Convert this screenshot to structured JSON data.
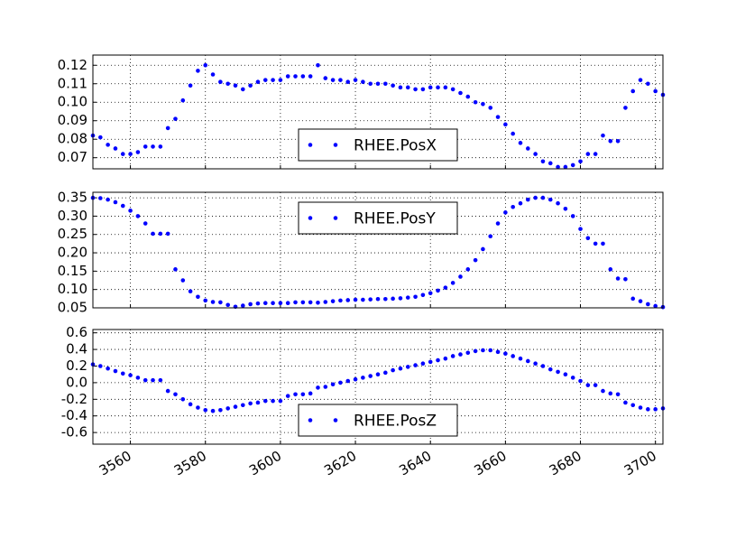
{
  "chart_data": [
    {
      "type": "scatter",
      "x": [
        3550,
        3552,
        3554,
        3556,
        3558,
        3560,
        3562,
        3564,
        3566,
        3568,
        3570,
        3572,
        3574,
        3576,
        3578,
        3580,
        3582,
        3584,
        3586,
        3588,
        3590,
        3592,
        3594,
        3596,
        3598,
        3600,
        3602,
        3604,
        3606,
        3608,
        3610,
        3612,
        3614,
        3616,
        3618,
        3620,
        3622,
        3624,
        3626,
        3628,
        3630,
        3632,
        3634,
        3636,
        3638,
        3640,
        3642,
        3644,
        3646,
        3648,
        3650,
        3652,
        3654,
        3656,
        3658,
        3660,
        3662,
        3664,
        3666,
        3668,
        3670,
        3672,
        3674,
        3676,
        3678,
        3680,
        3682,
        3684,
        3686,
        3688,
        3690,
        3692,
        3694,
        3696,
        3698,
        3700,
        3702
      ],
      "series": [
        {
          "name": "RHEE.PosX",
          "color": "#0000ff",
          "values": [
            0.082,
            0.081,
            0.077,
            0.075,
            0.072,
            0.072,
            0.073,
            0.076,
            0.076,
            0.076,
            0.086,
            0.091,
            0.101,
            0.109,
            0.117,
            0.12,
            0.115,
            0.111,
            0.11,
            0.109,
            0.107,
            0.109,
            0.111,
            0.112,
            0.112,
            0.112,
            0.114,
            0.114,
            0.114,
            0.114,
            0.12,
            0.113,
            0.112,
            0.112,
            0.111,
            0.112,
            0.111,
            0.11,
            0.11,
            0.11,
            0.109,
            0.108,
            0.108,
            0.107,
            0.107,
            0.108,
            0.108,
            0.108,
            0.107,
            0.105,
            0.103,
            0.1,
            0.099,
            0.097,
            0.092,
            0.088,
            0.083,
            0.078,
            0.075,
            0.072,
            0.068,
            0.067,
            0.065,
            0.065,
            0.066,
            0.068,
            0.072,
            0.072,
            0.082,
            0.079,
            0.079,
            0.097,
            0.106,
            0.112,
            0.11,
            0.106,
            0.104
          ]
        }
      ],
      "xlim": [
        3550,
        3702
      ],
      "ylim": [
        0.064,
        0.1255
      ],
      "yticks": [
        0.07,
        0.08,
        0.09,
        {
          "value": 0.1,
          "label": "0.10"
        },
        0.11,
        0.12
      ],
      "grid": true,
      "legend": "lower center"
    },
    {
      "type": "scatter",
      "x": [
        3550,
        3552,
        3554,
        3556,
        3558,
        3560,
        3562,
        3564,
        3566,
        3568,
        3570,
        3572,
        3574,
        3576,
        3578,
        3580,
        3582,
        3584,
        3586,
        3588,
        3590,
        3592,
        3594,
        3596,
        3598,
        3600,
        3602,
        3604,
        3606,
        3608,
        3610,
        3612,
        3614,
        3616,
        3618,
        3620,
        3622,
        3624,
        3626,
        3628,
        3630,
        3632,
        3634,
        3636,
        3638,
        3640,
        3642,
        3644,
        3646,
        3648,
        3650,
        3652,
        3654,
        3656,
        3658,
        3660,
        3662,
        3664,
        3666,
        3668,
        3670,
        3672,
        3674,
        3676,
        3678,
        3680,
        3682,
        3684,
        3686,
        3688,
        3690,
        3692,
        3694,
        3696,
        3698,
        3700,
        3702
      ],
      "series": [
        {
          "name": "RHEE.PosY",
          "color": "#0000ff",
          "values": [
            0.35,
            0.349,
            0.345,
            0.338,
            0.328,
            0.315,
            0.3,
            0.28,
            0.252,
            0.252,
            0.252,
            0.155,
            0.125,
            0.095,
            0.08,
            0.07,
            0.066,
            0.065,
            0.058,
            0.053,
            0.056,
            0.06,
            0.062,
            0.063,
            0.063,
            0.063,
            0.063,
            0.065,
            0.065,
            0.065,
            0.064,
            0.066,
            0.068,
            0.07,
            0.071,
            0.072,
            0.072,
            0.073,
            0.074,
            0.074,
            0.075,
            0.076,
            0.078,
            0.08,
            0.085,
            0.09,
            0.097,
            0.105,
            0.118,
            0.135,
            0.155,
            0.18,
            0.21,
            0.245,
            0.28,
            0.31,
            0.325,
            0.335,
            0.345,
            0.35,
            0.35,
            0.345,
            0.335,
            0.32,
            0.3,
            0.265,
            0.24,
            0.225,
            0.225,
            0.155,
            0.13,
            0.128,
            0.075,
            0.068,
            0.06,
            0.055,
            0.052
          ]
        }
      ],
      "xlim": [
        3550,
        3702
      ],
      "ylim": [
        0.05,
        0.365
      ],
      "yticks": [
        0.05,
        {
          "value": 0.1,
          "label": "0.10"
        },
        0.15,
        {
          "value": 0.2,
          "label": "0.20"
        },
        0.25,
        {
          "value": 0.3,
          "label": "0.30"
        },
        0.35
      ],
      "grid": true,
      "legend": "upper center"
    },
    {
      "type": "scatter",
      "x": [
        3550,
        3552,
        3554,
        3556,
        3558,
        3560,
        3562,
        3564,
        3566,
        3568,
        3570,
        3572,
        3574,
        3576,
        3578,
        3580,
        3582,
        3584,
        3586,
        3588,
        3590,
        3592,
        3594,
        3596,
        3598,
        3600,
        3602,
        3604,
        3606,
        3608,
        3610,
        3612,
        3614,
        3616,
        3618,
        3620,
        3622,
        3624,
        3626,
        3628,
        3630,
        3632,
        3634,
        3636,
        3638,
        3640,
        3642,
        3644,
        3646,
        3648,
        3650,
        3652,
        3654,
        3656,
        3658,
        3660,
        3662,
        3664,
        3666,
        3668,
        3670,
        3672,
        3674,
        3676,
        3678,
        3680,
        3682,
        3684,
        3686,
        3688,
        3690,
        3692,
        3694,
        3696,
        3698,
        3700,
        3702
      ],
      "series": [
        {
          "name": "RHEE.PosZ",
          "color": "#0000ff",
          "values": [
            0.22,
            0.2,
            0.17,
            0.14,
            0.11,
            0.09,
            0.06,
            0.03,
            0.03,
            0.03,
            -0.1,
            -0.14,
            -0.2,
            -0.26,
            -0.3,
            -0.33,
            -0.34,
            -0.33,
            -0.31,
            -0.29,
            -0.27,
            -0.25,
            -0.24,
            -0.22,
            -0.22,
            -0.22,
            -0.16,
            -0.14,
            -0.14,
            -0.13,
            -0.06,
            -0.05,
            -0.02,
            0.0,
            0.02,
            0.04,
            0.06,
            0.08,
            0.1,
            0.12,
            0.15,
            0.17,
            0.19,
            0.21,
            0.23,
            0.25,
            0.27,
            0.29,
            0.32,
            0.34,
            0.36,
            0.38,
            0.39,
            0.39,
            0.37,
            0.35,
            0.32,
            0.29,
            0.26,
            0.23,
            0.2,
            0.16,
            0.13,
            0.1,
            0.06,
            0.02,
            -0.03,
            -0.03,
            -0.1,
            -0.13,
            -0.14,
            -0.24,
            -0.27,
            -0.3,
            -0.32,
            -0.32,
            -0.31
          ]
        }
      ],
      "xlim": [
        3550,
        3702
      ],
      "ylim": [
        -0.74,
        0.64
      ],
      "xticks": [
        3560,
        3580,
        3600,
        3620,
        3640,
        3660,
        3680,
        3700
      ],
      "yticks": [
        -0.6,
        -0.4,
        -0.2,
        {
          "value": 0,
          "label": "0.0"
        },
        0.2,
        0.4,
        0.6
      ],
      "grid": true,
      "legend": "lower center"
    }
  ]
}
